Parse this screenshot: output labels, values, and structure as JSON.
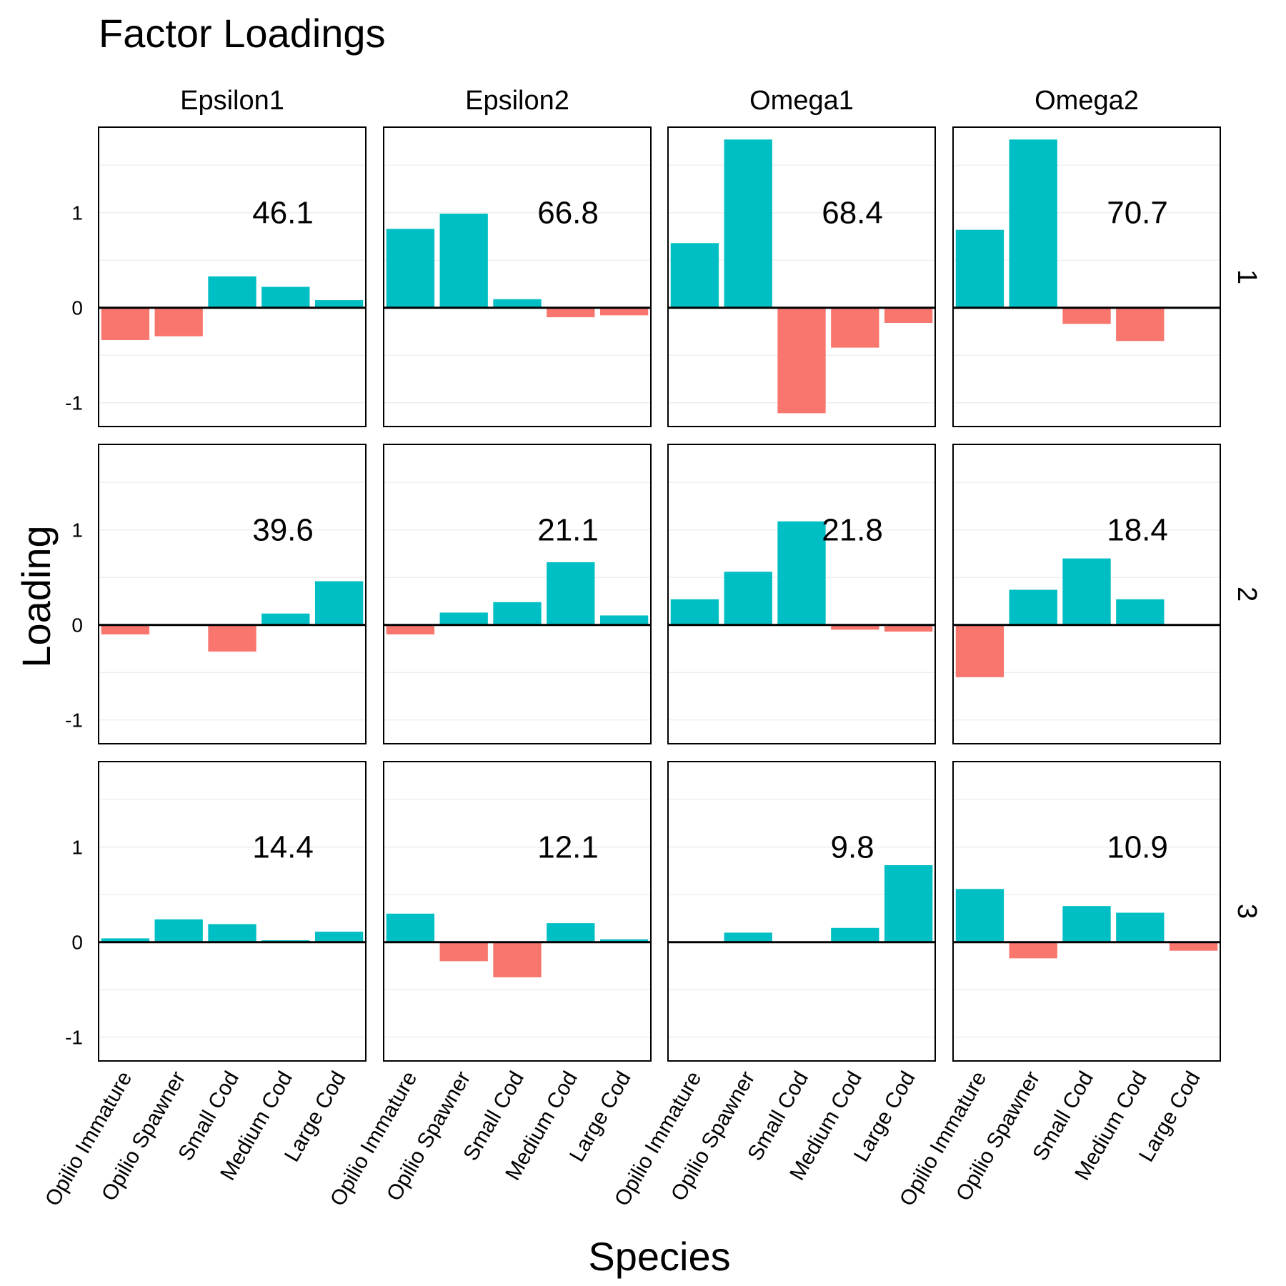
{
  "chart_data": {
    "type": "bar",
    "title": "Factor Loadings",
    "xlabel": "Species",
    "ylabel": "Loading",
    "categories": [
      "Opilio Immature",
      "Opilio Spawner",
      "Small Cod",
      "Medium Cod",
      "Large Cod"
    ],
    "columns": [
      "Epsilon1",
      "Epsilon2",
      "Omega1",
      "Omega2"
    ],
    "rows": [
      "1",
      "2",
      "3"
    ],
    "ylim": [
      -1.25,
      1.9
    ],
    "yticks": [
      -1,
      0,
      1
    ],
    "grid": true,
    "positive_color": "#00BFC4",
    "negative_color": "#F8766D",
    "panels": [
      {
        "column": "Epsilon1",
        "row": "1",
        "label": "46.1",
        "values": [
          -0.34,
          -0.3,
          0.33,
          0.22,
          0.08
        ]
      },
      {
        "column": "Epsilon2",
        "row": "1",
        "label": "66.8",
        "values": [
          0.83,
          0.99,
          0.09,
          -0.1,
          -0.08
        ]
      },
      {
        "column": "Omega1",
        "row": "1",
        "label": "68.4",
        "values": [
          0.68,
          1.77,
          -1.11,
          -0.42,
          -0.16
        ]
      },
      {
        "column": "Omega2",
        "row": "1",
        "label": "70.7",
        "values": [
          0.82,
          1.77,
          -0.17,
          -0.35,
          0.0
        ]
      },
      {
        "column": "Epsilon1",
        "row": "2",
        "label": "39.6",
        "values": [
          -0.1,
          0.0,
          -0.28,
          0.12,
          0.46
        ]
      },
      {
        "column": "Epsilon2",
        "row": "2",
        "label": "21.1",
        "values": [
          -0.1,
          0.13,
          0.24,
          0.66,
          0.1
        ]
      },
      {
        "column": "Omega1",
        "row": "2",
        "label": "21.8",
        "values": [
          0.27,
          0.56,
          1.09,
          -0.05,
          -0.07
        ]
      },
      {
        "column": "Omega2",
        "row": "2",
        "label": "18.4",
        "values": [
          -0.55,
          0.37,
          0.7,
          0.27,
          0.0
        ]
      },
      {
        "column": "Epsilon1",
        "row": "3",
        "label": "14.4",
        "values": [
          0.04,
          0.24,
          0.19,
          0.02,
          0.11
        ]
      },
      {
        "column": "Epsilon2",
        "row": "3",
        "label": "12.1",
        "values": [
          0.3,
          -0.2,
          -0.37,
          0.2,
          0.03
        ]
      },
      {
        "column": "Omega1",
        "row": "3",
        "label": "9.8",
        "values": [
          0.0,
          0.1,
          0.0,
          0.15,
          0.81
        ]
      },
      {
        "column": "Omega2",
        "row": "3",
        "label": "10.9",
        "values": [
          0.56,
          -0.17,
          0.38,
          0.31,
          -0.09
        ]
      }
    ]
  }
}
